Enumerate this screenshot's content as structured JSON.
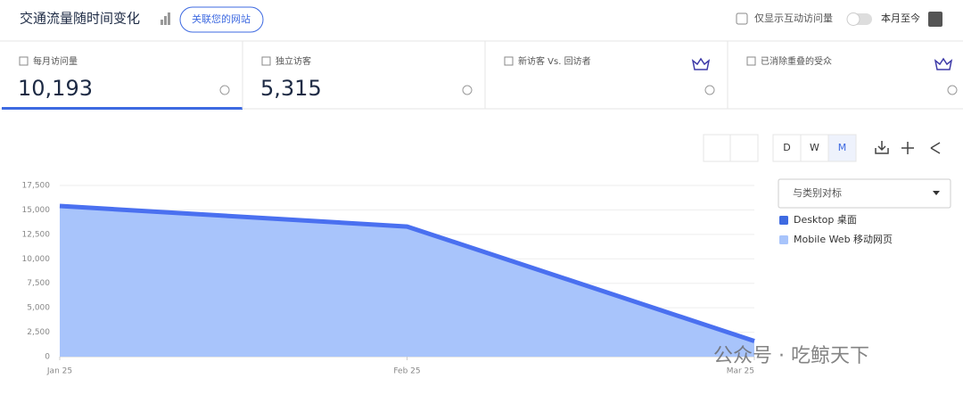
{
  "header": {
    "title": "交通流量随时间变化",
    "connect_button": "关联您的网站",
    "interactive_only": "仅显示互动访问量",
    "period": "本月至今"
  },
  "metrics": [
    {
      "label": "每月访问量",
      "value": "10,193"
    },
    {
      "label": "独立访客",
      "value": "5,315"
    },
    {
      "label": "新访客 Vs. 回访者"
    },
    {
      "label": "已消除重叠的受众"
    }
  ],
  "granularity": [
    "D",
    "W",
    "M"
  ],
  "benchmark": "与类别对标",
  "legend": [
    {
      "label": "Desktop 桌面",
      "color": "#3e6ae1"
    },
    {
      "label": "Mobile Web 移动网页",
      "color": "#a8c4fb"
    }
  ],
  "watermark": "公众号 · 吃鲸天下",
  "chart_data": {
    "type": "area",
    "categories": [
      "Jan 25",
      "Feb 25",
      "Mar 25"
    ],
    "values": [
      15400,
      13300,
      1600
    ],
    "color": "#a8c4fb",
    "line_color": "#4a70f0",
    "ylim": [
      0,
      17500
    ],
    "yticks": [
      0,
      {
        "value": 2500,
        "label": "2,500"
      },
      {
        "value": 5000,
        "label": "5,000"
      },
      {
        "value": 7500,
        "label": "7,500"
      },
      {
        "value": 10000,
        "label": "10,000"
      },
      {
        "value": 12500,
        "label": "12,500"
      },
      {
        "value": 15000,
        "label": "15,000"
      },
      {
        "value": 17500,
        "label": "17,500"
      }
    ],
    "grid": true
  }
}
